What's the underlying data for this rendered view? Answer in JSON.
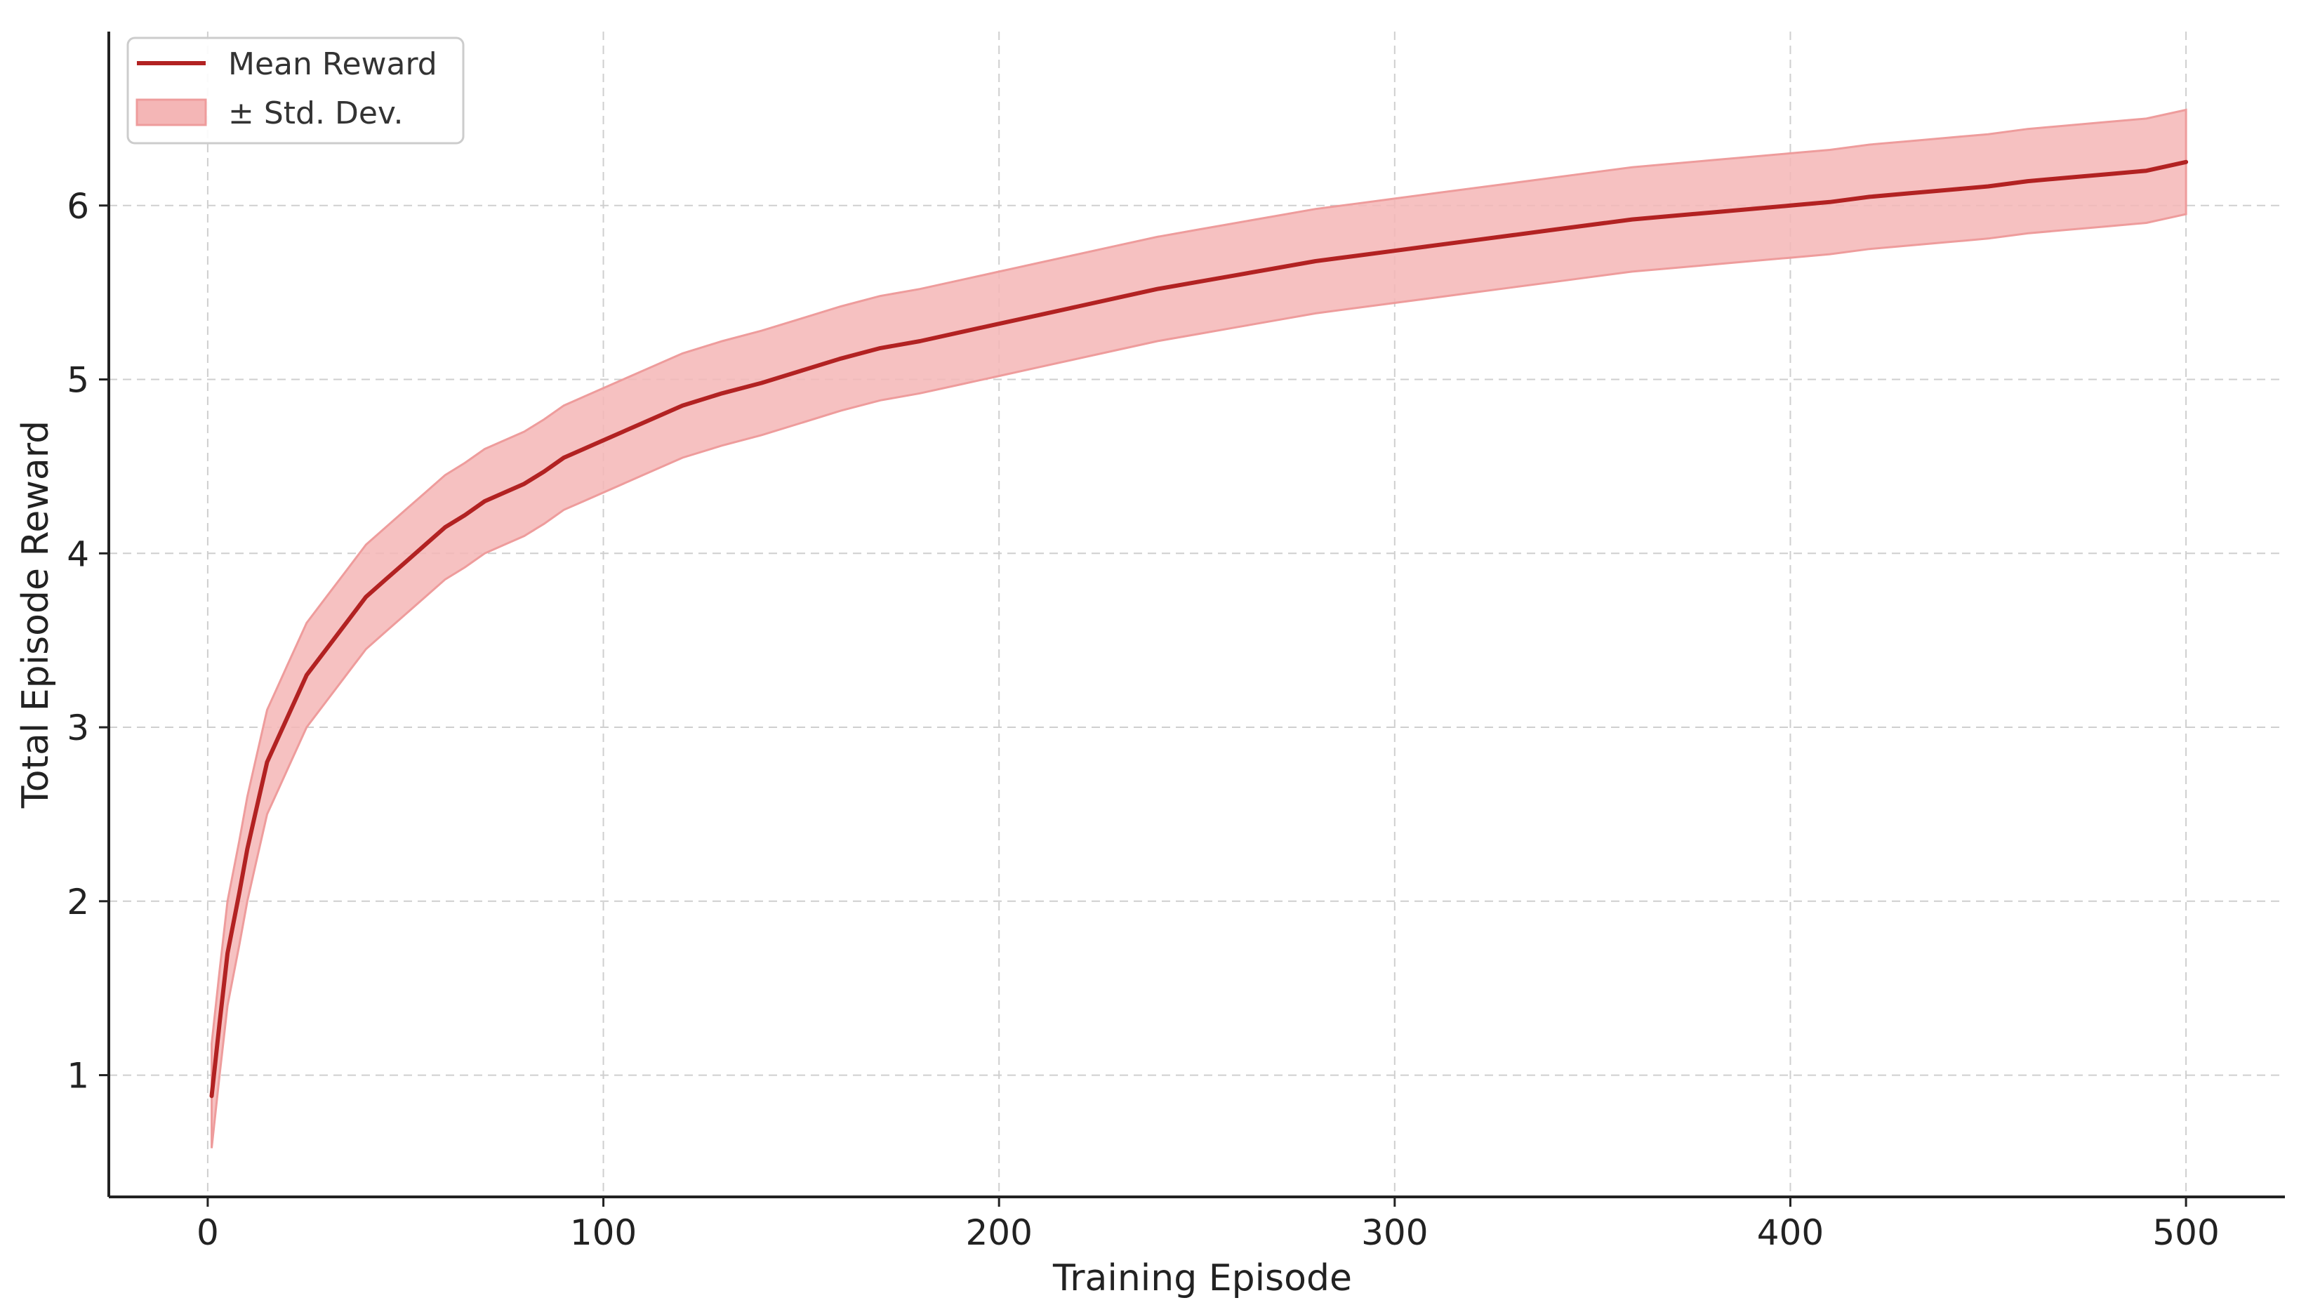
{
  "chart_data": {
    "type": "line",
    "title": "",
    "xlabel": "Training Episode",
    "ylabel": "Total Episode Reward",
    "xlim": [
      -25,
      525
    ],
    "ylim": [
      0.3,
      7.0
    ],
    "xticks": [
      0,
      100,
      200,
      300,
      400,
      500
    ],
    "yticks": [
      1,
      2,
      3,
      4,
      5,
      6
    ],
    "grid": true,
    "legend_position": "top-left",
    "colors": {
      "line": "#b22222",
      "band": "#f4b6b6",
      "band_edge": "#ee9c9c"
    },
    "series": [
      {
        "name": "Mean Reward",
        "kind": "line",
        "x": [
          1,
          3,
          5,
          8,
          10,
          12,
          15,
          18,
          20,
          25,
          30,
          35,
          40,
          45,
          50,
          55,
          60,
          65,
          70,
          75,
          80,
          85,
          90,
          95,
          100,
          110,
          120,
          130,
          140,
          150,
          160,
          170,
          180,
          190,
          200,
          210,
          220,
          230,
          240,
          250,
          260,
          270,
          280,
          290,
          300,
          310,
          320,
          330,
          340,
          350,
          360,
          370,
          380,
          390,
          400,
          410,
          420,
          430,
          440,
          450,
          460,
          470,
          480,
          490,
          500
        ],
        "values": [
          0.88,
          1.3,
          1.7,
          2.05,
          2.3,
          2.5,
          2.8,
          2.95,
          3.05,
          3.3,
          3.45,
          3.6,
          3.75,
          3.85,
          3.95,
          4.05,
          4.15,
          4.22,
          4.3,
          4.35,
          4.4,
          4.47,
          4.55,
          4.6,
          4.65,
          4.75,
          4.85,
          4.92,
          4.98,
          5.05,
          5.12,
          5.18,
          5.22,
          5.27,
          5.32,
          5.37,
          5.42,
          5.47,
          5.52,
          5.56,
          5.6,
          5.64,
          5.68,
          5.71,
          5.74,
          5.77,
          5.8,
          5.83,
          5.86,
          5.89,
          5.92,
          5.94,
          5.96,
          5.98,
          6.0,
          6.02,
          6.05,
          6.07,
          6.09,
          6.11,
          6.14,
          6.16,
          6.18,
          6.2,
          6.25
        ]
      },
      {
        "name": "± Std. Dev.",
        "kind": "band",
        "x": [
          1,
          3,
          5,
          8,
          10,
          12,
          15,
          18,
          20,
          25,
          30,
          35,
          40,
          45,
          50,
          55,
          60,
          65,
          70,
          75,
          80,
          85,
          90,
          95,
          100,
          110,
          120,
          130,
          140,
          150,
          160,
          170,
          180,
          190,
          200,
          210,
          220,
          230,
          240,
          250,
          260,
          270,
          280,
          290,
          300,
          310,
          320,
          330,
          340,
          350,
          360,
          370,
          380,
          390,
          400,
          410,
          420,
          430,
          440,
          450,
          460,
          470,
          480,
          490,
          500
        ],
        "std": [
          0.3,
          0.3,
          0.3,
          0.3,
          0.3,
          0.3,
          0.3,
          0.3,
          0.3,
          0.3,
          0.3,
          0.3,
          0.3,
          0.3,
          0.3,
          0.3,
          0.3,
          0.3,
          0.3,
          0.3,
          0.3,
          0.3,
          0.3,
          0.3,
          0.3,
          0.3,
          0.3,
          0.3,
          0.3,
          0.3,
          0.3,
          0.3,
          0.3,
          0.3,
          0.3,
          0.3,
          0.3,
          0.3,
          0.3,
          0.3,
          0.3,
          0.3,
          0.3,
          0.3,
          0.3,
          0.3,
          0.3,
          0.3,
          0.3,
          0.3,
          0.3,
          0.3,
          0.3,
          0.3,
          0.3,
          0.3,
          0.3,
          0.3,
          0.3,
          0.3,
          0.3,
          0.3,
          0.3,
          0.3,
          0.3
        ]
      }
    ]
  }
}
